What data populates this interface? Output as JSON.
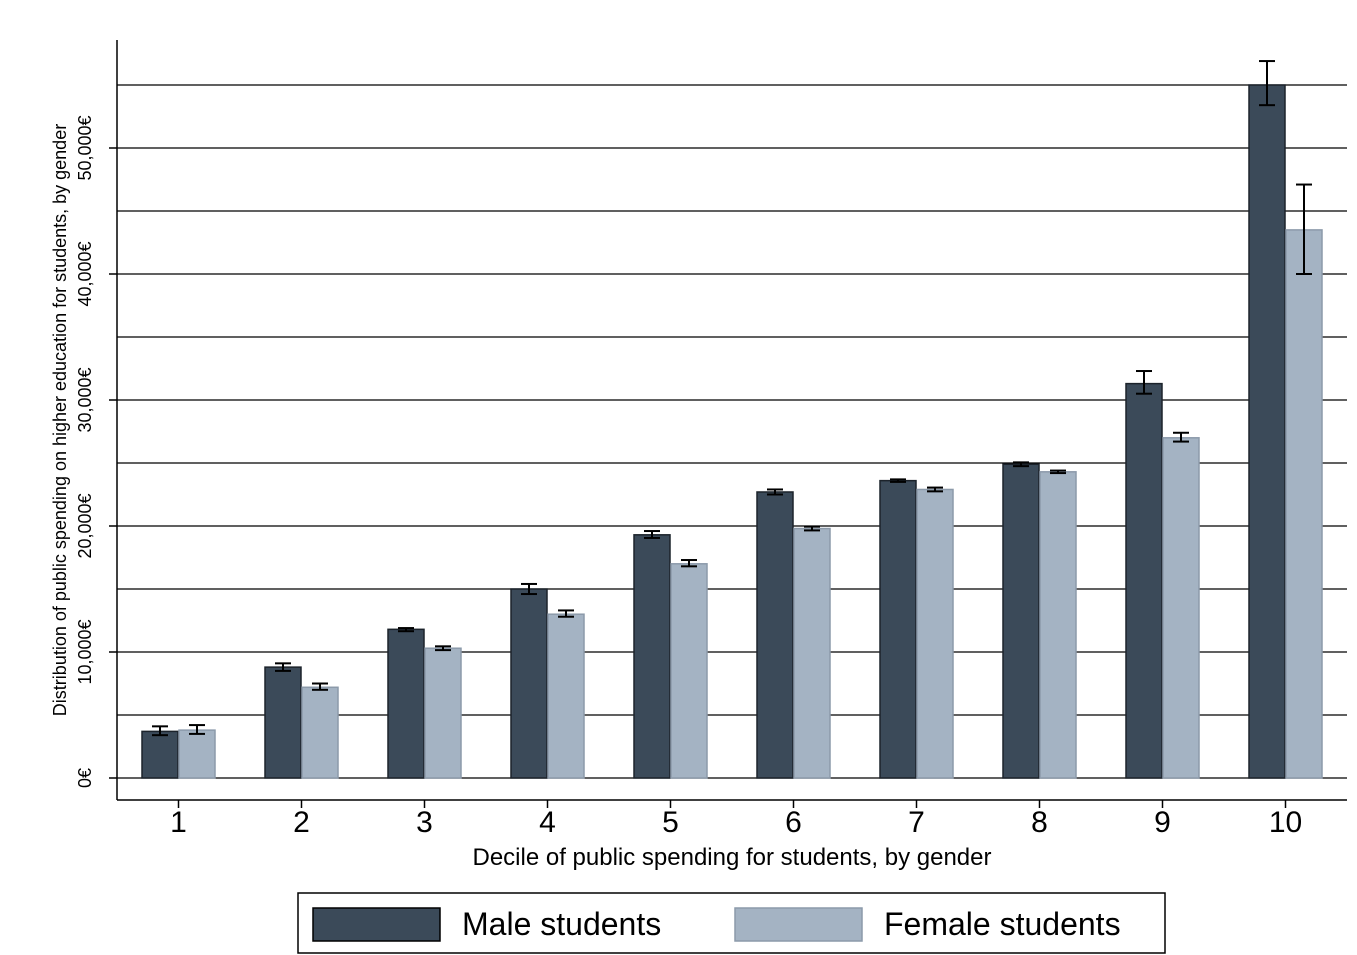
{
  "chart_data": {
    "type": "bar",
    "xlabel": "Decile of public spending for students, by gender",
    "ylabel": "Distribution of public spending on higher education for students, by gender",
    "categories": [
      "1",
      "2",
      "3",
      "4",
      "5",
      "6",
      "7",
      "8",
      "9",
      "10"
    ],
    "y_ticks": [
      {
        "value": 0,
        "label": "0€"
      },
      {
        "value": 10000,
        "label": "10,000€"
      },
      {
        "value": 20000,
        "label": "20,000€"
      },
      {
        "value": 30000,
        "label": "30,000€"
      },
      {
        "value": 40000,
        "label": "40,000€"
      },
      {
        "value": 50000,
        "label": "50,000€"
      }
    ],
    "ylim": [
      0,
      55000
    ],
    "grid": true,
    "legend_position": "bottom",
    "series": [
      {
        "name": "Male students",
        "color": "#3b4a59",
        "values": [
          3700,
          8800,
          11800,
          15000,
          19300,
          22700,
          23600,
          24900,
          31300,
          55000
        ],
        "error_low": [
          3400,
          8500,
          11650,
          14600,
          19050,
          22500,
          23500,
          24750,
          30500,
          53400
        ],
        "error_high": [
          4100,
          9100,
          11900,
          15400,
          19600,
          22900,
          23700,
          25050,
          32300,
          56900
        ]
      },
      {
        "name": "Female students",
        "color": "#a4b3c3",
        "values": [
          3800,
          7200,
          10300,
          13000,
          17000,
          19800,
          22900,
          24300,
          27000,
          43500
        ],
        "error_low": [
          3500,
          7000,
          10150,
          12800,
          16800,
          19650,
          22750,
          24200,
          26700,
          40000
        ],
        "error_high": [
          4200,
          7500,
          10450,
          13300,
          17300,
          19950,
          23050,
          24400,
          27400,
          47100
        ]
      }
    ]
  }
}
